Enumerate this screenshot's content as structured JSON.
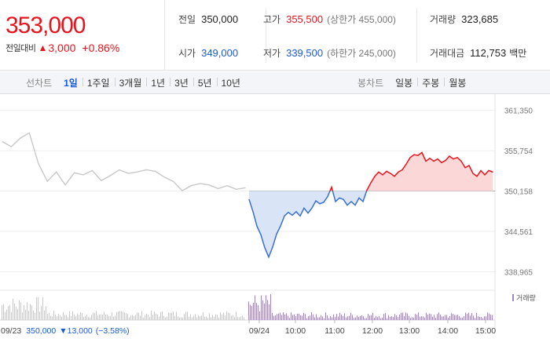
{
  "quote": {
    "price": "353,000",
    "change_label": "전일대비",
    "change_icon": "up-triangle-icon",
    "change_amount": "3,000",
    "change_pct": "+0.86%",
    "stats": [
      {
        "label": "전일",
        "value": "350,000",
        "color": "#222222",
        "sub": ""
      },
      {
        "label": "고가",
        "value": "355,500",
        "color": "#e8141d",
        "sub": "(상한가 455,000)"
      },
      {
        "label": "거래량",
        "value": "323,685",
        "color": "#222222",
        "sub": ""
      },
      {
        "label": "시가",
        "value": "349,000",
        "color": "#1a5ad6",
        "sub": ""
      },
      {
        "label": "저가",
        "value": "339,500",
        "color": "#1a5ad6",
        "sub": "(하한가 245,000)"
      },
      {
        "label": "거래대금",
        "value": "112,753",
        "color": "#222222",
        "sub": "",
        "unit": "백만"
      }
    ]
  },
  "tabs": {
    "line_label": "선차트",
    "line_tabs": [
      "1일",
      "1주일",
      "3개월",
      "1년",
      "3년",
      "5년",
      "10년"
    ],
    "line_active": "1일",
    "candle_label": "봉차트",
    "candle_tabs": [
      "일봉",
      "주봉",
      "월봉"
    ]
  },
  "chart_data": {
    "type": "line",
    "ylim": [
      337500,
      362500
    ],
    "y_ticks": [
      "361,350",
      "355,754",
      "350,158",
      "344,561",
      "338,965"
    ],
    "y_tick_values": [
      361350,
      355754,
      350158,
      344561,
      338965
    ],
    "baseline": 350158,
    "prev_day_label": "09/23",
    "prev_day_price": "350,000",
    "prev_day_change": "▼13,000",
    "prev_day_pct": "(−3.58%)",
    "x_ticks": [
      "09/24",
      "10:00",
      "11:00",
      "12:00",
      "13:00",
      "14:00",
      "15:00"
    ],
    "volume_legend": "거래량",
    "colors": {
      "up": "#e8141d",
      "down": "#3a6fd1",
      "prev": "#c8c8c8",
      "volume_prev": "#c8c8c8",
      "volume_today": "#9c86c9"
    },
    "prev_day_series": [
      357000,
      356300,
      357500,
      358200,
      354000,
      351500,
      352800,
      351000,
      352700,
      352400,
      353000,
      351600,
      352300,
      353100,
      352600,
      352800,
      353100,
      352900,
      352100,
      351500,
      350200,
      350900,
      351200,
      351000,
      350500,
      350900,
      350400,
      350600
    ],
    "today_series": [
      349000,
      347300,
      345300,
      344100,
      342300,
      341000,
      342400,
      344200,
      345300,
      346700,
      347200,
      346800,
      347300,
      346700,
      347800,
      347100,
      347800,
      348800,
      348400,
      348600,
      349400,
      350700,
      348700,
      349200,
      349000,
      348200,
      348700,
      348200,
      349200,
      348700,
      350300,
      351300,
      352200,
      352800,
      352400,
      352900,
      352600,
      352200,
      352800,
      353100,
      353900,
      354800,
      355200,
      355100,
      355500,
      354300,
      354700,
      354300,
      354600,
      354100,
      354400,
      355000,
      354600,
      354800,
      354300,
      353400,
      353700,
      352600,
      352200,
      353000,
      352400,
      353000,
      352800
    ]
  }
}
